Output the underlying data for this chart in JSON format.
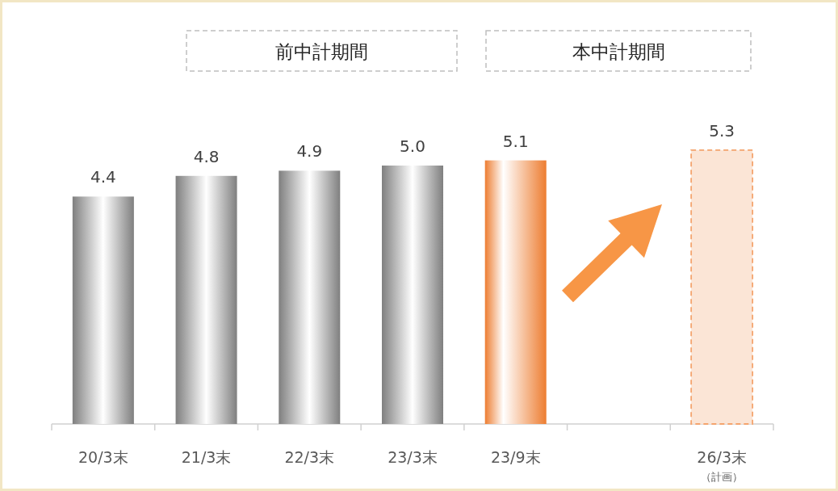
{
  "chart_data": {
    "type": "bar",
    "categories": [
      "20/3末",
      "21/3末",
      "22/3末",
      "23/3末",
      "23/9末",
      null,
      "26/3末"
    ],
    "series": [
      {
        "values": [
          4.4,
          4.8,
          4.9,
          5.0,
          5.1,
          null,
          null
        ],
        "value_labels": [
          "4.4",
          "4.8",
          "4.9",
          "5.0",
          "5.1",
          null,
          null
        ],
        "colors": [
          "#7f7f7f",
          "#7f7f7f",
          "#7f7f7f",
          "#7f7f7f",
          "#ed7d31",
          null,
          null
        ],
        "line_style": "solid"
      },
      {
        "values": [
          null,
          null,
          null,
          null,
          null,
          null,
          5.3
        ],
        "value_labels": [
          null,
          null,
          null,
          null,
          null,
          null,
          "5.3"
        ],
        "color": "#fbe5d6",
        "line_style": "dashed"
      }
    ],
    "annotations": [
      "前中計期間",
      "本中計期間",
      "（計画）"
    ]
  }
}
